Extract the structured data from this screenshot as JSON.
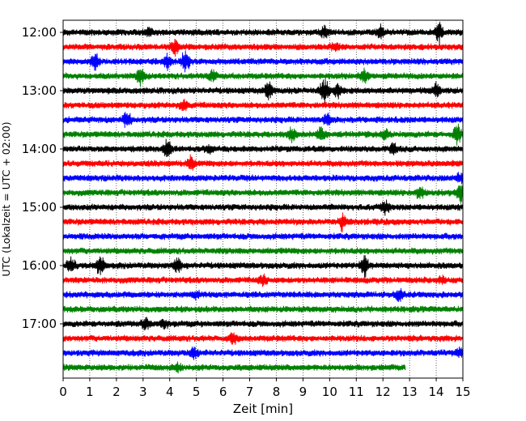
{
  "chart_data": {
    "type": "line",
    "xlabel": "Zeit  [min]",
    "ylabel": "UTC (Lokalzeit = UTC + 02:00)",
    "xlim": [
      0,
      15
    ],
    "x_ticks": [
      0,
      1,
      2,
      3,
      4,
      5,
      6,
      7,
      8,
      9,
      10,
      11,
      12,
      13,
      14,
      15
    ],
    "grid_x": true,
    "grid_style": "dotted",
    "y_rows": [
      "12:00",
      "12:15",
      "12:30",
      "12:45",
      "13:00",
      "13:15",
      "13:30",
      "13:45",
      "14:00",
      "14:15",
      "14:30",
      "14:45",
      "15:00",
      "15:15",
      "15:30",
      "15:45",
      "16:00",
      "16:15",
      "16:30",
      "16:45",
      "17:00",
      "17:15",
      "17:30",
      "17:45"
    ],
    "y_tick_labels": [
      "12:00",
      "13:00",
      "14:00",
      "15:00",
      "16:00",
      "17:00"
    ],
    "y_tick_rows": [
      0,
      4,
      8,
      12,
      16,
      20
    ],
    "color_cycle": [
      "#000000",
      "#ff0000",
      "#0000ff",
      "#008000"
    ],
    "last_trace_end_min": 12.85,
    "bursts": [
      [
        [
          3.2,
          0.6
        ],
        [
          9.8,
          0.7
        ],
        [
          14.1,
          1.1
        ],
        [
          11.9,
          0.6
        ]
      ],
      [
        [
          4.2,
          0.8
        ],
        [
          10.2,
          0.5
        ]
      ],
      [
        [
          1.2,
          1.0
        ],
        [
          4.6,
          1.2
        ],
        [
          3.9,
          0.8
        ]
      ],
      [
        [
          2.9,
          0.9
        ],
        [
          11.3,
          0.9
        ],
        [
          5.6,
          0.5
        ]
      ],
      [
        [
          9.8,
          1.6
        ],
        [
          7.7,
          1.0
        ],
        [
          14.0,
          0.8
        ],
        [
          10.3,
          0.9
        ]
      ],
      [
        [
          4.5,
          0.6
        ]
      ],
      [
        [
          2.4,
          0.9
        ],
        [
          9.9,
          0.6
        ]
      ],
      [
        [
          8.6,
          0.8
        ],
        [
          9.7,
          0.8
        ],
        [
          14.8,
          1.0
        ],
        [
          12.1,
          0.5
        ]
      ],
      [
        [
          3.9,
          1.2
        ],
        [
          12.4,
          0.6
        ],
        [
          5.5,
          0.5
        ]
      ],
      [
        [
          4.8,
          0.7
        ]
      ],
      [
        [
          14.9,
          0.5
        ]
      ],
      [
        [
          13.4,
          0.8
        ],
        [
          14.9,
          1.0
        ]
      ],
      [
        [
          12.1,
          0.7
        ]
      ],
      [
        [
          10.5,
          0.9
        ]
      ],
      [],
      [],
      [
        [
          0.3,
          0.9
        ],
        [
          1.4,
          1.1
        ],
        [
          4.3,
          0.7
        ],
        [
          11.3,
          1.2
        ]
      ],
      [
        [
          7.5,
          0.5
        ],
        [
          14.2,
          0.4
        ]
      ],
      [
        [
          12.6,
          0.6
        ],
        [
          5.0,
          0.4
        ]
      ],
      [],
      [
        [
          3.1,
          0.7
        ],
        [
          3.8,
          0.5
        ]
      ],
      [
        [
          6.4,
          0.6
        ]
      ],
      [
        [
          4.9,
          0.5
        ],
        [
          14.9,
          0.5
        ]
      ],
      [
        [
          4.3,
          0.4
        ]
      ]
    ]
  }
}
